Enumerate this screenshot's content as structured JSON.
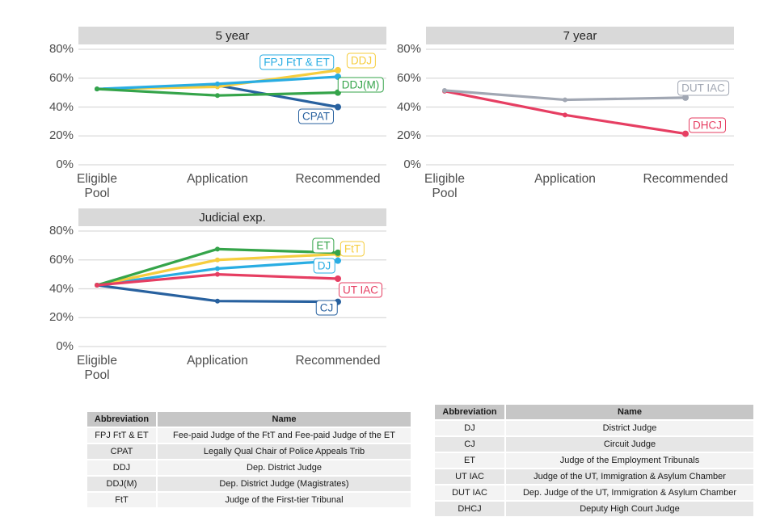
{
  "chart_data": [
    {
      "type": "line",
      "title": "5 year",
      "categories": [
        "Eligible Pool",
        "Application",
        "Recommended"
      ],
      "category_display": [
        [
          "Eligible",
          "Pool"
        ],
        [
          "Application"
        ],
        [
          "Recommended"
        ]
      ],
      "xlabel": "",
      "ylabel": "",
      "y_tick_labels": [
        "0%",
        "20%",
        "40%",
        "60%",
        "80%"
      ],
      "y_tick_values": [
        0,
        20,
        40,
        60,
        80
      ],
      "ylim": [
        0,
        85
      ],
      "grid": "horizontal-major-only",
      "legend_position": "direct-labels-on-plot",
      "series": [
        {
          "name": "CPAT",
          "color": "#28619f",
          "values": [
            52.5,
            55,
            40
          ],
          "label_pos": {
            "x": 294,
            "y": 89
          }
        },
        {
          "name": "DDJ",
          "color": "#f6cd3e",
          "values": [
            52.5,
            54,
            65.5
          ],
          "label_pos": {
            "x": 350,
            "y": 20
          }
        },
        {
          "name": "FPJ FtT & ET",
          "color": "#29ade3",
          "values": [
            52.5,
            56,
            61
          ],
          "label_pos": {
            "x": 270,
            "y": 22
          }
        },
        {
          "name": "DDJ(M)",
          "color": "#35a44a",
          "values": [
            52.5,
            48,
            50
          ],
          "label_pos": {
            "x": 349,
            "y": 50
          }
        }
      ]
    },
    {
      "type": "line",
      "title": "7 year",
      "categories": [
        "Eligible Pool",
        "Application",
        "Recommended"
      ],
      "category_display": [
        [
          "Eligible",
          "Pool"
        ],
        [
          "Application"
        ],
        [
          "Recommended"
        ]
      ],
      "xlabel": "",
      "ylabel": "",
      "y_tick_labels": [
        "0%",
        "20%",
        "40%",
        "60%",
        "80%"
      ],
      "y_tick_values": [
        0,
        20,
        40,
        60,
        80
      ],
      "ylim": [
        0,
        85
      ],
      "grid": "horizontal-major-only",
      "legend_position": "direct-labels-on-plot",
      "series": [
        {
          "name": "DHCJ",
          "color": "#e63e62",
          "values": [
            51,
            34.5,
            21.5
          ],
          "label_pos": {
            "x": 348,
            "y": 100
          }
        },
        {
          "name": "DUT IAC",
          "color": "#a1a7b3",
          "values": [
            51.5,
            45,
            46.5
          ],
          "label_pos": {
            "x": 343,
            "y": 54
          }
        }
      ]
    },
    {
      "type": "line",
      "title": "Judicial exp.",
      "categories": [
        "Eligible Pool",
        "Application",
        "Recommended"
      ],
      "category_display": [
        [
          "Eligible",
          "Pool"
        ],
        [
          "Application"
        ],
        [
          "Recommended"
        ]
      ],
      "xlabel": "",
      "ylabel": "",
      "y_tick_labels": [
        "0%",
        "20%",
        "40%",
        "60%",
        "80%"
      ],
      "y_tick_values": [
        0,
        20,
        40,
        60,
        80
      ],
      "ylim": [
        0,
        85
      ],
      "grid": "horizontal-major-only",
      "legend_position": "direct-labels-on-plot",
      "series": [
        {
          "name": "CJ",
          "color": "#28619f",
          "values": [
            42.5,
            31.5,
            31
          ],
          "label_pos": {
            "x": 307,
            "y": 101
          }
        },
        {
          "name": "DJ",
          "color": "#29ade3",
          "values": [
            42.5,
            54,
            59.5
          ],
          "label_pos": {
            "x": 304,
            "y": 49
          }
        },
        {
          "name": "FtT",
          "color": "#f6cd3e",
          "values": [
            42.5,
            60,
            64
          ],
          "label_pos": {
            "x": 339,
            "y": 28
          }
        },
        {
          "name": "ET",
          "color": "#35a44a",
          "values": [
            42.5,
            67.5,
            65
          ],
          "label_pos": {
            "x": 303,
            "y": 24
          }
        },
        {
          "name": "UT IAC",
          "color": "#e63e62",
          "values": [
            42.5,
            50,
            47
          ],
          "label_pos": {
            "x": 349,
            "y": 79
          }
        }
      ]
    }
  ],
  "tables": {
    "left": {
      "headers": [
        "Abbreviation",
        "Name"
      ],
      "rows": [
        [
          "FPJ FtT & ET",
          "Fee-paid Judge of the FtT and Fee-paid Judge of the ET"
        ],
        [
          "CPAT",
          "Legally Qual Chair of Police Appeals Trib"
        ],
        [
          "DDJ",
          "Dep. District Judge"
        ],
        [
          "DDJ(M)",
          "Dep. District Judge (Magistrates)"
        ],
        [
          "FtT",
          "Judge of the First-tier Tribunal"
        ]
      ]
    },
    "right": {
      "headers": [
        "Abbreviation",
        "Name"
      ],
      "rows": [
        [
          "DJ",
          "District Judge"
        ],
        [
          "CJ",
          "Circuit Judge"
        ],
        [
          "ET",
          "Judge of the Employment Tribunals"
        ],
        [
          "UT IAC",
          "Judge of the UT, Immigration & Asylum Chamber"
        ],
        [
          "DUT IAC",
          "Dep. Judge of the UT, Immigration & Asylum Chamber"
        ],
        [
          "DHCJ",
          "Deputy High Court Judge"
        ]
      ]
    }
  },
  "style_colors": {
    "grid_line": "#d9d9d9",
    "facet_strip_bg": "#d9d9d9",
    "axis_text": "#4d4d4d"
  }
}
